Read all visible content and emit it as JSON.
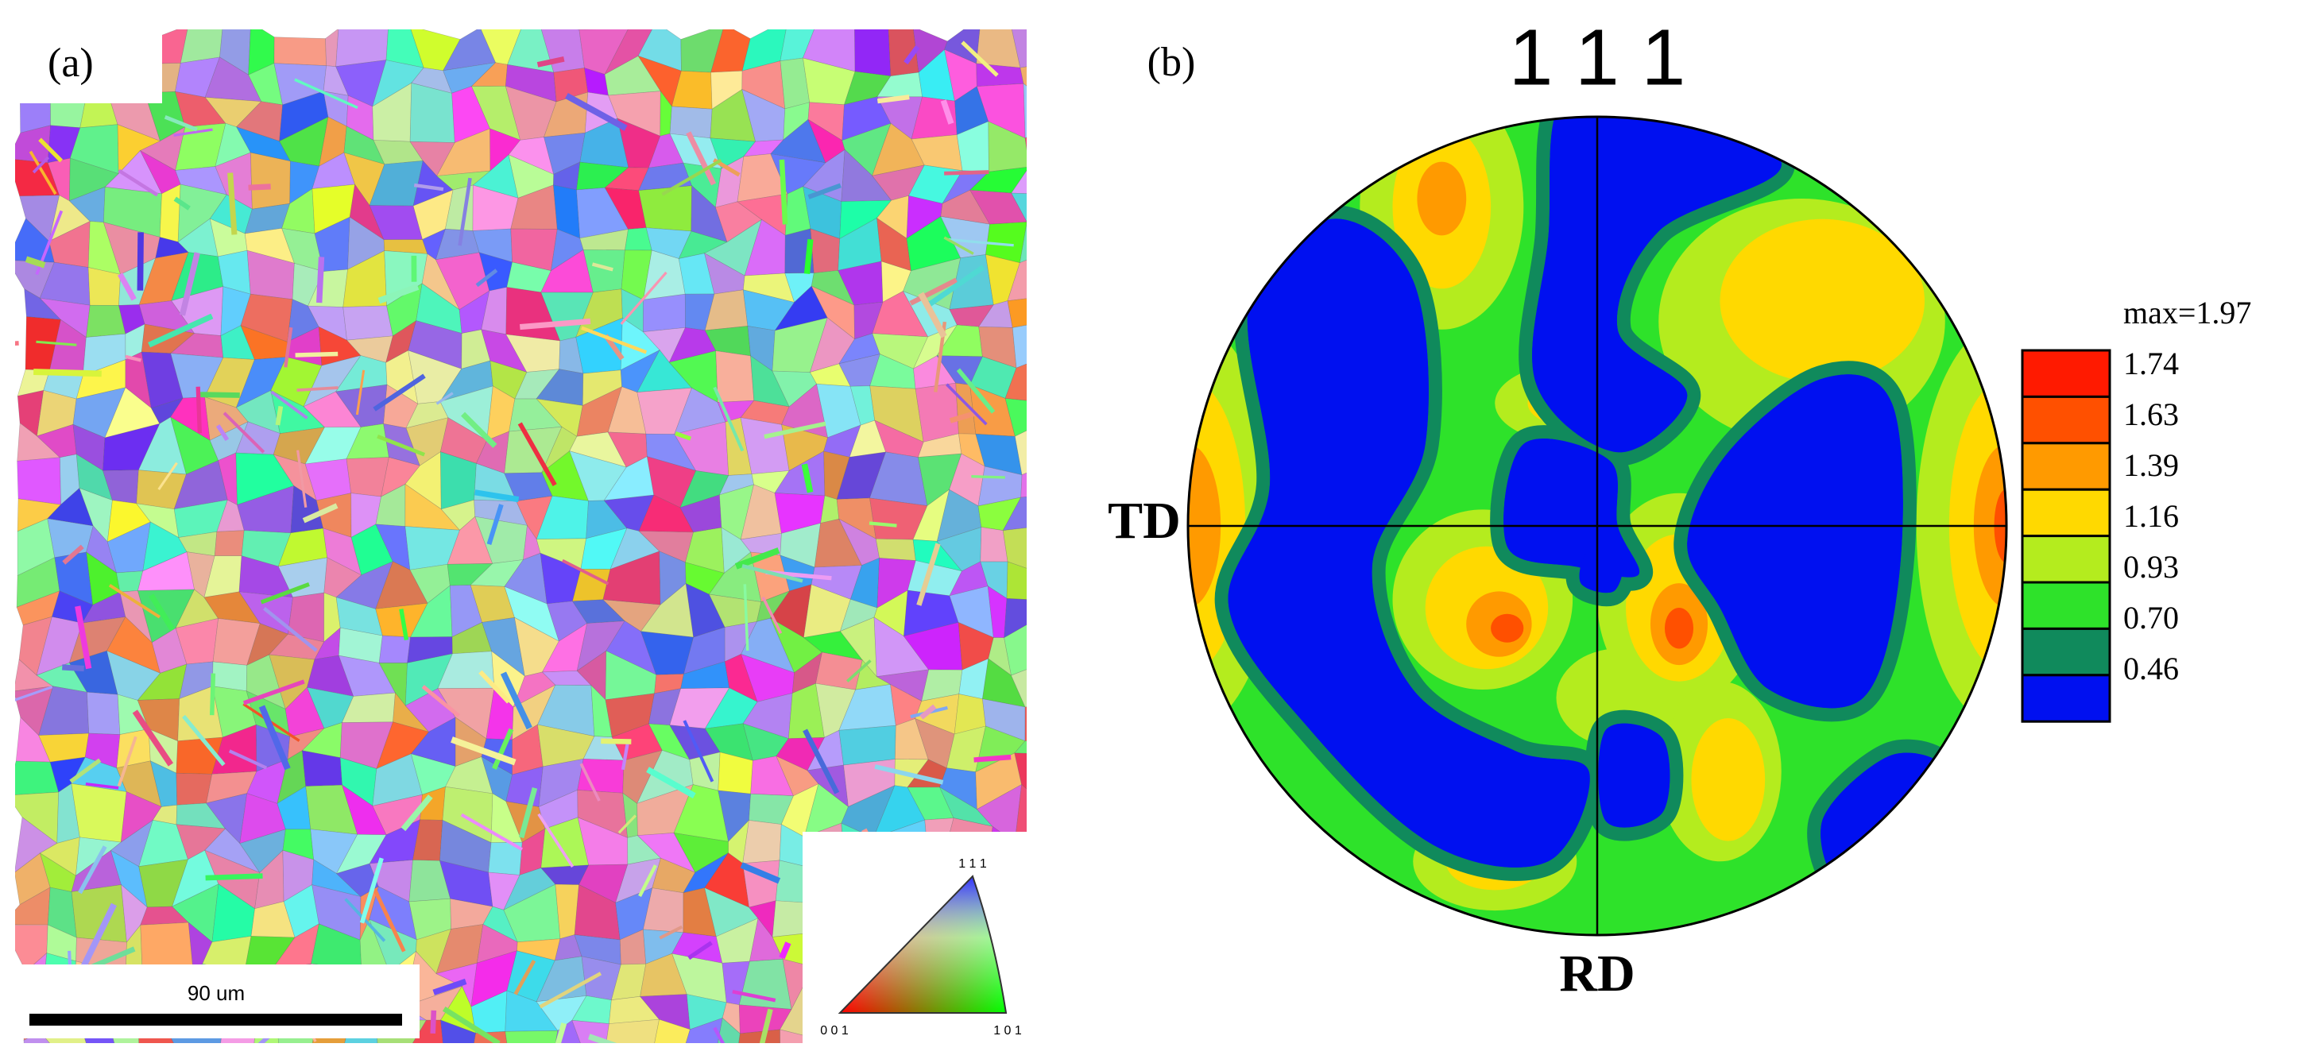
{
  "panel_a": {
    "label": "(a)",
    "scale_bar": "90 um",
    "ipf_key": {
      "top": "1 1 1",
      "left": "0 0 1",
      "right": "1 0 1"
    }
  },
  "panel_b": {
    "label": "(b)",
    "title": "1 1 1",
    "td": "TD",
    "rd": "RD",
    "legend": [
      {
        "label": "max=1.97",
        "color": "#ff1a00"
      },
      {
        "label": "1.74",
        "color": "#ff5000"
      },
      {
        "label": "1.63",
        "color": "#ff9a00"
      },
      {
        "label": "1.39",
        "color": "#ffd900"
      },
      {
        "label": "1.16",
        "color": "#b4ec1e"
      },
      {
        "label": "0.93",
        "color": "#2ee22a"
      },
      {
        "label": "0.70",
        "color": "#108a5c"
      },
      {
        "label": "0.46",
        "color": "#0010f0"
      }
    ]
  }
}
